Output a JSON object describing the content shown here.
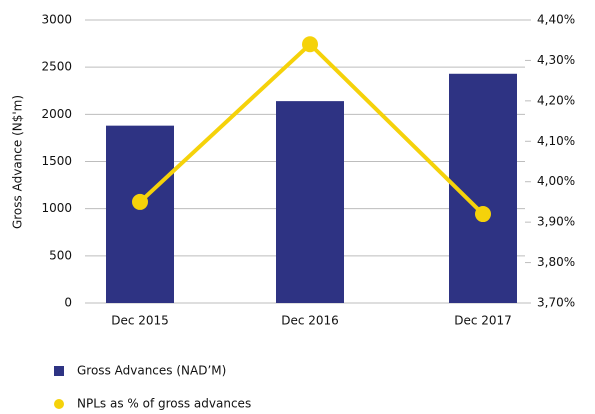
{
  "chart_data": {
    "type": "bar",
    "categories": [
      "Dec 2015",
      "Dec 2016",
      "Dec 2017"
    ],
    "y_label": "Gross Advance (N$'m)",
    "series": [
      {
        "name": "Gross Advances (NAD’M)",
        "type": "bar",
        "color": "#2e3383",
        "values": [
          1880,
          2140,
          2430
        ]
      },
      {
        "name": "NPLs as % of gross advances",
        "type": "line",
        "axis": "y2",
        "color": "#f5d20a",
        "values": [
          3.95,
          4.34,
          3.92
        ]
      }
    ],
    "ylim": [
      0,
      3000
    ],
    "yticks": [
      0,
      500,
      1000,
      1500,
      2000,
      2500,
      3000
    ],
    "y2lim": [
      3.7,
      4.4
    ],
    "y2ticks": [
      {
        "value": 3.7,
        "label": "3,70%"
      },
      {
        "value": 3.8,
        "label": "3,80%"
      },
      {
        "value": 3.9,
        "label": "3,90%"
      },
      {
        "value": 4.0,
        "label": "4,00%"
      },
      {
        "value": 4.1,
        "label": "4,10%"
      },
      {
        "value": 4.2,
        "label": "4,20%"
      },
      {
        "value": 4.3,
        "label": "4,30%"
      },
      {
        "value": 4.4,
        "label": "4,40%"
      }
    ],
    "grid": true
  }
}
